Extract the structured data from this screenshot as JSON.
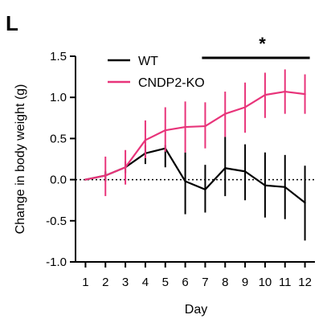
{
  "panel_label": "L",
  "chart_data": {
    "type": "line",
    "xlabel": "Day",
    "ylabel": "Change in body weight (g)",
    "x": [
      1,
      2,
      3,
      4,
      5,
      6,
      7,
      8,
      9,
      10,
      11,
      12
    ],
    "xlim": [
      0.5,
      12.5
    ],
    "ylim": [
      -1.0,
      1.5
    ],
    "yticks": [
      -1.0,
      -0.5,
      0.0,
      0.5,
      1.0,
      1.5
    ],
    "ytick_labels": [
      "-1.0",
      "-0.5",
      "0.0",
      "0.5",
      "1.0",
      "1.5"
    ],
    "xtick_labels": [
      "1",
      "2",
      "3",
      "4",
      "5",
      "6",
      "7",
      "8",
      "9",
      "10",
      "11",
      "12"
    ],
    "zero_line": "dotted",
    "grid": false,
    "legend_position": "top-left",
    "series": [
      {
        "name": "WT",
        "color": "#000000",
        "values": [
          0.0,
          0.05,
          0.15,
          0.32,
          0.38,
          -0.02,
          -0.12,
          0.14,
          0.1,
          -0.07,
          -0.09,
          -0.28
        ],
        "err_low": [
          0.0,
          -0.02,
          0.08,
          0.19,
          0.15,
          -0.42,
          -0.4,
          -0.2,
          -0.25,
          -0.46,
          -0.48,
          -0.74
        ],
        "err_high": [
          0.0,
          0.1,
          0.22,
          0.42,
          0.42,
          0.33,
          0.18,
          0.52,
          0.43,
          0.33,
          0.3,
          0.17
        ]
      },
      {
        "name": "CNDP2-KO",
        "color": "#e8347a",
        "values": [
          0.0,
          0.05,
          0.15,
          0.48,
          0.6,
          0.64,
          0.65,
          0.8,
          0.88,
          1.03,
          1.07,
          1.04
        ],
        "err_low": [
          0.0,
          -0.2,
          -0.06,
          0.26,
          0.34,
          0.33,
          0.38,
          0.52,
          0.57,
          0.75,
          0.8,
          0.8
        ],
        "err_high": [
          0.0,
          0.28,
          0.36,
          0.72,
          0.88,
          0.95,
          0.94,
          1.07,
          1.18,
          1.3,
          1.34,
          1.28
        ]
      }
    ],
    "significance": {
      "label": "*",
      "from_day": 7,
      "to_day": 12
    }
  }
}
